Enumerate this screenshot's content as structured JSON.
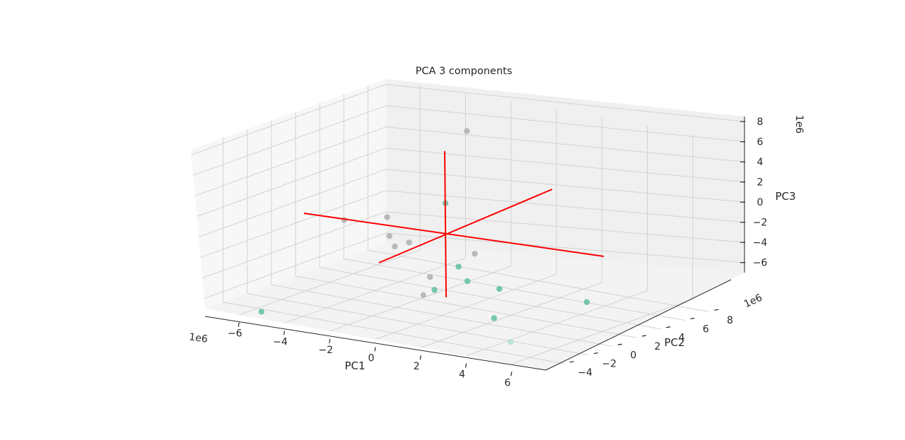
{
  "chart_data": {
    "type": "scatter",
    "projection": "3d",
    "title": "PCA 3 components",
    "xlabel": "PC1",
    "ylabel": "PC2",
    "zlabel": "PC3",
    "x_offset": "1e6",
    "y_offset": "1e6",
    "z_offset": "1e6",
    "xticks": [
      "−6",
      "−4",
      "−2",
      "0",
      "2",
      "4",
      "6"
    ],
    "yticks": [
      "−4",
      "−2",
      "0",
      "2",
      "4",
      "6",
      "8"
    ],
    "zticks": [
      "−6",
      "−4",
      "−2",
      "0",
      "2",
      "4",
      "6",
      "8"
    ],
    "xlim": [
      -7.5,
      7.5
    ],
    "ylim": [
      -5.5,
      9.5
    ],
    "zlim": [
      -7,
      8.5
    ],
    "grid": true,
    "axis_lines_color": "#ff0000",
    "series": [
      {
        "color": "#66c2a5",
        "points": [
          {
            "x": -5.6,
            "y": -4.4,
            "z": -7.0
          },
          {
            "x": -1.7,
            "y": 3.5,
            "z": 1.5
          },
          {
            "x": 1.0,
            "y": -0.5,
            "z": -1.8
          },
          {
            "x": 1.5,
            "y": -0.7,
            "z": -2.9
          },
          {
            "x": 0.9,
            "y": -2.3,
            "z": -3.3
          },
          {
            "x": 2.8,
            "y": -0.5,
            "z": -3.2
          },
          {
            "x": 4.0,
            "y": -3.2,
            "z": -4.4
          },
          {
            "x": 6.7,
            "y": -0.6,
            "z": -2.9
          }
        ]
      },
      {
        "color": "#b3b3b3",
        "points": [
          {
            "x": -1.5,
            "y": 4.9,
            "z": 7.8
          },
          {
            "x": -5.2,
            "y": 1.7,
            "z": -0.7
          },
          {
            "x": -4.0,
            "y": 3.0,
            "z": -0.5
          },
          {
            "x": -3.0,
            "y": 1.3,
            "z": -1.2
          },
          {
            "x": -2.6,
            "y": 1.0,
            "z": -1.9
          },
          {
            "x": -2.5,
            "y": 2.0,
            "z": -1.9
          },
          {
            "x": 0.6,
            "y": 1.6,
            "z": -1.6
          },
          {
            "x": -0.2,
            "y": -0.6,
            "z": -3.2
          },
          {
            "x": 0.3,
            "y": -2.1,
            "z": -4.1
          }
        ]
      },
      {
        "color": "#b3e2cd",
        "points": [
          {
            "x": 5.2,
            "y": -4.1,
            "z": -5.8
          }
        ]
      }
    ]
  }
}
